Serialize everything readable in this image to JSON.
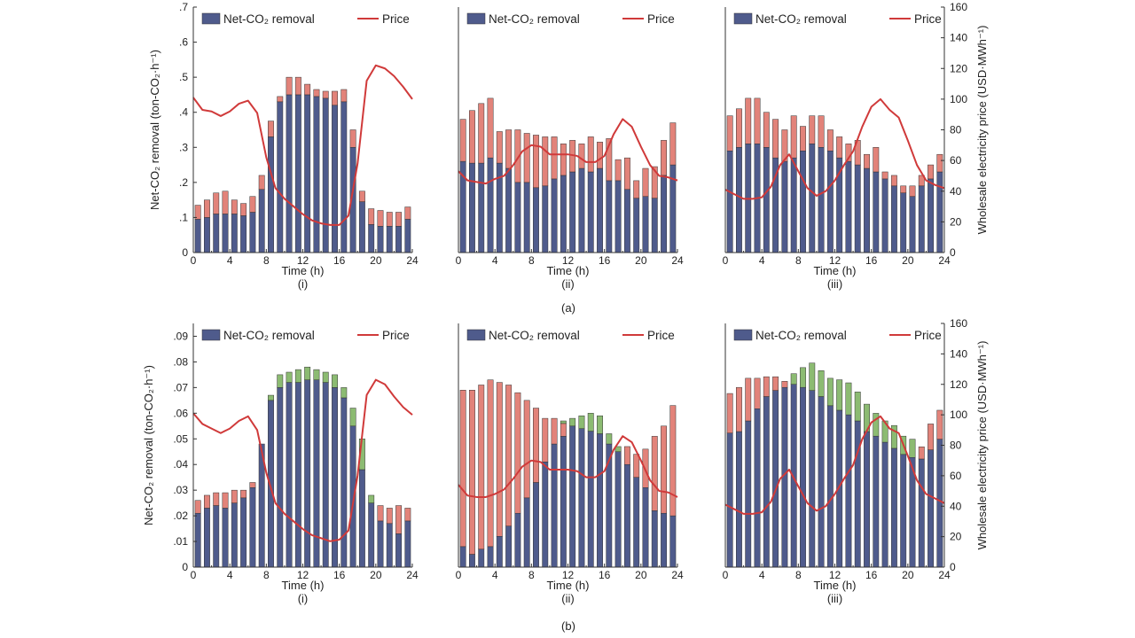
{
  "figure": {
    "row_labels": [
      "(a)",
      "(b)"
    ],
    "panel_labels": [
      "(i)",
      "(ii)",
      "(iii)"
    ],
    "xlabel": "Time (h)",
    "ylabel_left": "Net-CO₂ removal (ton-CO₂·h⁻¹)",
    "ylabel_right": "Wholesale electricity price (USD·MWh⁻¹)",
    "legend_bar": "Net-CO₂ removal",
    "legend_line": "Price",
    "colors": {
      "bar_base": "#4f5b8c",
      "bar_red": "#e2837a",
      "bar_green": "#8cbb72",
      "price_line": "#d03a3a"
    }
  },
  "chart_data": [
    {
      "type": "bar",
      "row": "(a)",
      "panel": "(i)",
      "x": [
        0,
        1,
        2,
        3,
        4,
        5,
        6,
        7,
        8,
        9,
        10,
        11,
        12,
        13,
        14,
        15,
        16,
        17,
        18,
        19,
        20,
        21,
        22,
        23
      ],
      "series": [
        {
          "name": "Net-CO₂ removal",
          "values": [
            0.095,
            0.1,
            0.11,
            0.11,
            0.11,
            0.105,
            0.115,
            0.18,
            0.33,
            0.43,
            0.45,
            0.45,
            0.45,
            0.445,
            0.44,
            0.42,
            0.43,
            0.3,
            0.145,
            0.08,
            0.075,
            0.075,
            0.075,
            0.095
          ]
        },
        {
          "values": [
            0.04,
            0.05,
            0.06,
            0.065,
            0.04,
            0.035,
            0.045,
            0.04,
            0.045,
            0.015,
            0.05,
            0.05,
            0.03,
            0.02,
            0.02,
            0.04,
            0.035,
            0.05,
            0.03,
            0.045,
            0.045,
            0.04,
            0.04,
            0.035
          ]
        }
      ],
      "price": {
        "name": "Price",
        "x": [
          0,
          1,
          2,
          3,
          4,
          5,
          6,
          7,
          8,
          9,
          10,
          11,
          12,
          13,
          14,
          15,
          16,
          17,
          18,
          19,
          20,
          21,
          22,
          23,
          24
        ],
        "values": [
          101,
          93,
          92,
          89,
          92,
          97,
          99,
          91,
          62,
          42,
          35,
          30,
          25,
          21,
          19,
          18,
          18,
          24,
          58,
          112,
          122,
          120,
          115,
          108,
          100
        ]
      },
      "xlim": [
        0,
        24
      ],
      "ylim": [
        0,
        0.7
      ],
      "yticks": [
        0,
        0.1,
        0.2,
        0.3,
        0.4,
        0.5,
        0.6,
        0.7
      ],
      "price_ylim": [
        0,
        160
      ]
    },
    {
      "type": "bar",
      "row": "(a)",
      "panel": "(ii)",
      "x": [
        0,
        1,
        2,
        3,
        4,
        5,
        6,
        7,
        8,
        9,
        10,
        11,
        12,
        13,
        14,
        15,
        16,
        17,
        18,
        19,
        20,
        21,
        22,
        23
      ],
      "series": [
        {
          "name": "Net-CO₂ removal",
          "values": [
            0.26,
            0.255,
            0.255,
            0.27,
            0.255,
            0.24,
            0.2,
            0.2,
            0.185,
            0.19,
            0.21,
            0.22,
            0.23,
            0.24,
            0.23,
            0.24,
            0.205,
            0.205,
            0.18,
            0.155,
            0.16,
            0.155,
            0.22,
            0.25
          ]
        },
        {
          "values": [
            0.12,
            0.15,
            0.17,
            0.17,
            0.09,
            0.11,
            0.15,
            0.14,
            0.15,
            0.14,
            0.12,
            0.09,
            0.09,
            0.07,
            0.1,
            0.075,
            0.12,
            0.06,
            0.09,
            0.05,
            0.08,
            0.09,
            0.1,
            0.12
          ]
        }
      ],
      "price": {
        "name": "Price",
        "x": [
          0,
          1,
          2,
          3,
          4,
          5,
          6,
          7,
          8,
          9,
          10,
          11,
          12,
          13,
          14,
          15,
          16,
          17,
          18,
          19,
          20,
          21,
          22,
          23,
          24
        ],
        "values": [
          53,
          47,
          46,
          45,
          48,
          50,
          57,
          66,
          70,
          69,
          64,
          64,
          64,
          63,
          59,
          59,
          63,
          77,
          87,
          82,
          69,
          57,
          50,
          49,
          47
        ]
      },
      "xlim": [
        0,
        24
      ],
      "ylim": [
        0,
        0.7
      ],
      "price_ylim": [
        0,
        160
      ]
    },
    {
      "type": "bar",
      "row": "(a)",
      "panel": "(iii)",
      "x": [
        0,
        1,
        2,
        3,
        4,
        5,
        6,
        7,
        8,
        9,
        10,
        11,
        12,
        13,
        14,
        15,
        16,
        17,
        18,
        19,
        20,
        21,
        22,
        23
      ],
      "series": [
        {
          "name": "Net-CO₂ removal",
          "values": [
            0.29,
            0.3,
            0.31,
            0.31,
            0.3,
            0.27,
            0.26,
            0.27,
            0.29,
            0.31,
            0.3,
            0.29,
            0.27,
            0.26,
            0.25,
            0.24,
            0.23,
            0.21,
            0.19,
            0.17,
            0.16,
            0.19,
            0.21,
            0.23
          ]
        },
        {
          "values": [
            0.1,
            0.11,
            0.13,
            0.13,
            0.1,
            0.11,
            0.09,
            0.12,
            0.07,
            0.08,
            0.09,
            0.06,
            0.06,
            0.05,
            0.07,
            0.04,
            0.07,
            0.02,
            0.03,
            0.02,
            0.03,
            0.03,
            0.04,
            0.05
          ]
        }
      ],
      "price": {
        "name": "Price",
        "x": [
          0,
          1,
          2,
          3,
          4,
          5,
          6,
          7,
          8,
          9,
          10,
          11,
          12,
          13,
          14,
          15,
          16,
          17,
          18,
          19,
          20,
          21,
          22,
          23,
          24
        ],
        "values": [
          41,
          38,
          35,
          35,
          36,
          43,
          57,
          64,
          53,
          42,
          37,
          40,
          47,
          57,
          66,
          82,
          95,
          100,
          93,
          88,
          73,
          57,
          47,
          44,
          42
        ]
      },
      "xlim": [
        0,
        24
      ],
      "ylim": [
        0,
        0.7
      ],
      "price_ylim": [
        0,
        160
      ],
      "price_yticks": [
        0,
        20,
        40,
        60,
        80,
        100,
        120,
        140,
        160
      ]
    },
    {
      "type": "bar",
      "row": "(b)",
      "panel": "(i)",
      "x": [
        0,
        1,
        2,
        3,
        4,
        5,
        6,
        7,
        8,
        9,
        10,
        11,
        12,
        13,
        14,
        15,
        16,
        17,
        18,
        19,
        20,
        21,
        22,
        23
      ],
      "series": [
        {
          "name": "Net-CO₂ removal",
          "values": [
            0.021,
            0.023,
            0.024,
            0.023,
            0.025,
            0.027,
            0.031,
            0.048,
            0.065,
            0.07,
            0.072,
            0.072,
            0.073,
            0.073,
            0.072,
            0.07,
            0.066,
            0.055,
            0.038,
            0.025,
            0.018,
            0.017,
            0.013,
            0.018
          ]
        },
        {
          "values": [
            0.005,
            0.005,
            0.005,
            0.006,
            0.005,
            0.003,
            0.002,
            0,
            0,
            0,
            0,
            0,
            0,
            0,
            0,
            0,
            0,
            0,
            0,
            0,
            0.006,
            0.006,
            0.011,
            0.005
          ]
        },
        {
          "values": [
            0,
            0,
            0,
            0,
            0,
            0,
            0,
            0,
            0.002,
            0.005,
            0.004,
            0.005,
            0.005,
            0.004,
            0.004,
            0.005,
            0.004,
            0.007,
            0.012,
            0.003,
            0,
            0,
            0,
            0
          ]
        }
      ],
      "price": {
        "name": "Price",
        "x": [
          0,
          1,
          2,
          3,
          4,
          5,
          6,
          7,
          8,
          9,
          10,
          11,
          12,
          13,
          14,
          15,
          16,
          17,
          18,
          19,
          20,
          21,
          22,
          23,
          24
        ],
        "values": [
          101,
          94,
          91,
          88,
          91,
          96,
          99,
          90,
          62,
          42,
          35,
          30,
          25,
          21,
          19,
          17,
          18,
          24,
          60,
          113,
          123,
          120,
          112,
          105,
          100
        ]
      },
      "xlim": [
        0,
        24
      ],
      "ylim": [
        0,
        0.095
      ],
      "yticks": [
        0,
        0.01,
        0.02,
        0.03,
        0.04,
        0.05,
        0.06,
        0.07,
        0.08,
        0.09
      ],
      "price_ylim": [
        0,
        160
      ]
    },
    {
      "type": "bar",
      "row": "(b)",
      "panel": "(ii)",
      "x": [
        0,
        1,
        2,
        3,
        4,
        5,
        6,
        7,
        8,
        9,
        10,
        11,
        12,
        13,
        14,
        15,
        16,
        17,
        18,
        19,
        20,
        21,
        22,
        23
      ],
      "series": [
        {
          "name": "Net-CO₂ removal",
          "values": [
            0.008,
            0.005,
            0.007,
            0.008,
            0.012,
            0.016,
            0.021,
            0.027,
            0.033,
            0.041,
            0.048,
            0.051,
            0.055,
            0.054,
            0.053,
            0.052,
            0.048,
            0.045,
            0.04,
            0.035,
            0.031,
            0.022,
            0.021,
            0.02
          ]
        },
        {
          "values": [
            0.061,
            0.064,
            0.064,
            0.065,
            0.06,
            0.055,
            0.047,
            0.038,
            0.029,
            0.017,
            0.01,
            0.005,
            0,
            0,
            0,
            0,
            0,
            0,
            0.007,
            0.009,
            0.015,
            0.029,
            0.034,
            0.043
          ]
        },
        {
          "values": [
            0,
            0,
            0,
            0,
            0,
            0,
            0,
            0,
            0,
            0,
            0,
            0.001,
            0.003,
            0.005,
            0.007,
            0.007,
            0.004,
            0.002,
            0,
            0,
            0,
            0,
            0,
            0
          ]
        }
      ],
      "price": {
        "name": "Price",
        "x": [
          0,
          1,
          2,
          3,
          4,
          5,
          6,
          7,
          8,
          9,
          10,
          11,
          12,
          13,
          14,
          15,
          16,
          17,
          18,
          19,
          20,
          21,
          22,
          23,
          24
        ],
        "values": [
          54,
          47,
          46,
          46,
          48,
          51,
          58,
          66,
          70,
          69,
          64,
          64,
          64,
          63,
          59,
          59,
          63,
          77,
          86,
          82,
          70,
          57,
          50,
          49,
          46
        ]
      },
      "xlim": [
        0,
        24
      ],
      "ylim": [
        0,
        0.095
      ],
      "price_ylim": [
        0,
        160
      ]
    },
    {
      "type": "bar",
      "row": "(b)",
      "panel": "(iii)",
      "x": [
        0,
        1,
        2,
        3,
        4,
        5,
        6,
        7,
        8,
        9,
        10,
        11,
        12,
        13,
        14,
        15,
        16,
        17,
        18,
        19,
        20,
        21,
        22,
        23
      ],
      "series": [
        {
          "name": "Net-CO₂ removal",
          "values": [
            88,
            89,
            96,
            104,
            112,
            116,
            118,
            120,
            118,
            116,
            112,
            106,
            103,
            100,
            96,
            89,
            86,
            82,
            78,
            74,
            72,
            71,
            77,
            84
          ]
        },
        {
          "values": [
            26,
            29,
            28,
            20,
            13,
            9,
            4,
            0,
            0,
            0,
            0,
            0,
            0,
            0,
            0,
            0,
            0,
            0,
            0,
            0,
            0,
            8,
            17,
            19
          ]
        },
        {
          "values": [
            0,
            0,
            0,
            0,
            0,
            0,
            0,
            7,
            13,
            18,
            17,
            18,
            20,
            21,
            19,
            18,
            15,
            14,
            15,
            12,
            12,
            0,
            0,
            0
          ]
        }
      ],
      "price": {
        "name": "Price",
        "x": [
          0,
          1,
          2,
          3,
          4,
          5,
          6,
          7,
          8,
          9,
          10,
          11,
          12,
          13,
          14,
          15,
          16,
          17,
          18,
          19,
          20,
          21,
          22,
          23,
          24
        ],
        "values": [
          41,
          38,
          35,
          35,
          36,
          43,
          58,
          64,
          53,
          42,
          37,
          40,
          48,
          58,
          67,
          84,
          95,
          99,
          91,
          88,
          73,
          57,
          48,
          45,
          42
        ]
      },
      "xlim": [
        0,
        24
      ],
      "ylim": [
        0,
        160
      ],
      "price_ylim": [
        0,
        160
      ],
      "price_yticks": [
        0,
        20,
        40,
        60,
        80,
        100,
        120,
        140,
        160
      ]
    }
  ]
}
